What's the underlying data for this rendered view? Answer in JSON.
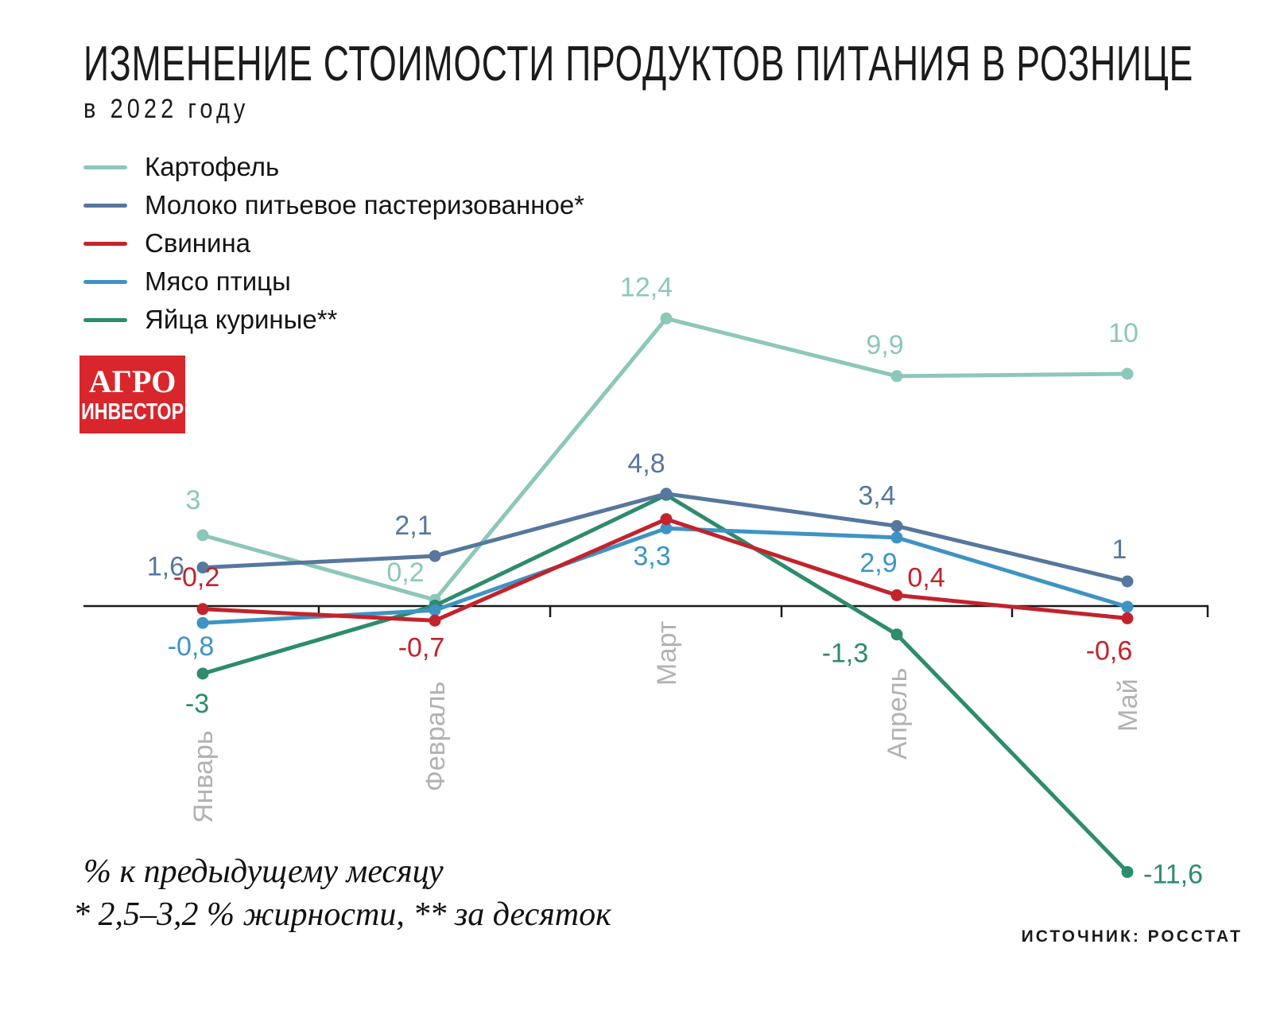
{
  "header": {
    "title": "ИЗМЕНЕНИЕ СТОИМОСТИ ПРОДУКТОВ ПИТАНИЯ В РОЗНИЦЕ",
    "subtitle": "в 2022 году"
  },
  "logo": {
    "line1": "АГРО",
    "line2": "ИНВЕСТОР",
    "bg_color": "#d8262c"
  },
  "chart_data": {
    "type": "line",
    "title": "Изменение стоимости продуктов питания в рознице в 2022 году",
    "categories": [
      "Январь",
      "Февраль",
      "Март",
      "Апрель",
      "Май"
    ],
    "series": [
      {
        "name": "Картофель",
        "color": "#8cc7ba",
        "values": [
          3,
          0.2,
          12.4,
          9.9,
          10
        ],
        "labels": [
          "3",
          "0,2",
          "12,4",
          "9,9",
          "10"
        ]
      },
      {
        "name": "Молоко питьевое пастеризованное*",
        "color": "#56779e",
        "values": [
          1.6,
          2.1,
          4.8,
          3.4,
          1
        ],
        "labels": [
          "1,6",
          "2,1",
          "4,8",
          "3,4",
          "1"
        ]
      },
      {
        "name": "Свинина",
        "color": "#c2232c",
        "values": [
          -0.2,
          -0.7,
          3.7,
          0.4,
          -0.6
        ],
        "labels": [
          "-0,2",
          "-0,7",
          "",
          "0,4",
          "-0,6"
        ]
      },
      {
        "name": "Мясо птицы",
        "color": "#3e93c5",
        "values": [
          -0.8,
          -0.25,
          3.3,
          2.9,
          -0.1
        ],
        "labels": [
          "-0,8",
          "",
          "3,3",
          "2,9",
          ""
        ]
      },
      {
        "name": "Яйца куриные**",
        "color": "#2d8b6e",
        "values": [
          -3,
          -0.05,
          4.75,
          -1.3,
          -11.6
        ],
        "labels": [
          "-3",
          "",
          "",
          "-1,3",
          "-11,6"
        ]
      }
    ],
    "xlabel": "",
    "ylabel": "% к предыдущему месяцу",
    "ylim": [
      -11.6,
      12.4
    ],
    "grid": false,
    "legend_position": "top-left",
    "axis_color": "#1a1a1a",
    "month_label_color": "#b2b2b4"
  },
  "footer": {
    "note1": "% к предыдущему месяцу",
    "note2": "* 2,5–3,2 % жирности, ** за десяток",
    "source": "ИСТОЧНИК: РОССТАТ"
  }
}
